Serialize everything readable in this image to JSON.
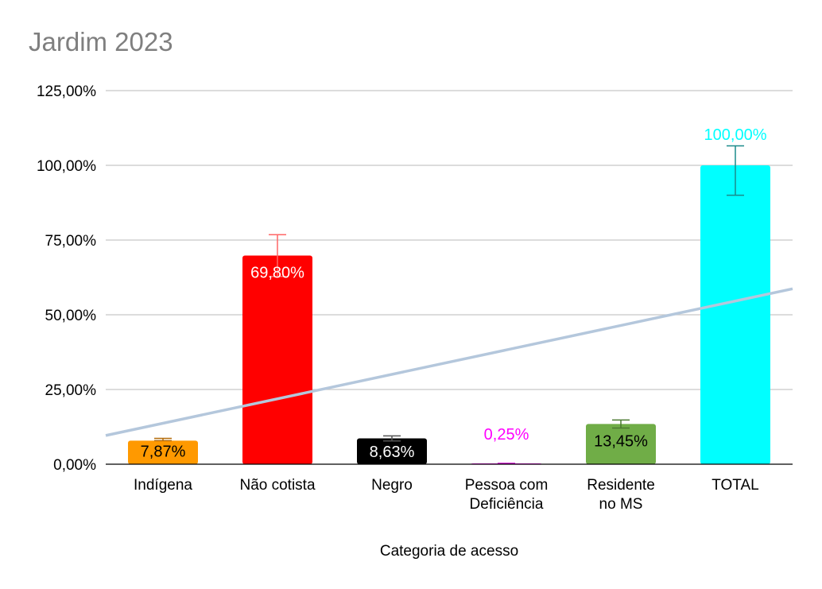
{
  "chart_data": {
    "type": "bar",
    "title": "Jardim 2023",
    "xlabel": "Categoria de acesso",
    "ylabel": "",
    "ylim": [
      0,
      125
    ],
    "yticks": [
      0,
      25,
      50,
      75,
      100,
      125
    ],
    "ytick_labels": [
      "0,00%",
      "25,00%",
      "50,00%",
      "75,00%",
      "100,00%",
      "125,00%"
    ],
    "grid": true,
    "categories": [
      [
        "Indígena"
      ],
      [
        "Não cotista"
      ],
      [
        "Negro"
      ],
      [
        "Pessoa com",
        "Deficiência"
      ],
      [
        "Residente",
        "no MS"
      ],
      [
        "TOTAL"
      ]
    ],
    "values": [
      7.87,
      69.8,
      8.63,
      0.25,
      13.45,
      100.0
    ],
    "data_labels": [
      "7,87%",
      "69,80%",
      "8,63%",
      "0,25%",
      "13,45%",
      "100,00%"
    ],
    "bar_colors": [
      "#ff9900",
      "#ff0000",
      "#000000",
      "#ff00ff",
      "#70ad47",
      "#00ffff"
    ],
    "label_colors": [
      "#000000",
      "#ffffff",
      "#ffffff",
      "#ff00ff",
      "#000000",
      "#00ffff"
    ],
    "label_inside": [
      true,
      true,
      true,
      false,
      true,
      false
    ],
    "error_bars": [
      {
        "low": 7.87,
        "high": 8.66
      },
      {
        "low": 62.8,
        "high": 76.8
      },
      {
        "low": 7.77,
        "high": 9.49
      },
      {
        "low": 0.22,
        "high": 0.28
      },
      {
        "low": 12.1,
        "high": 14.8
      },
      {
        "low": 90.0,
        "high": 106.5
      }
    ],
    "error_bar_colors": [
      "#b46b0a",
      "#ff6666",
      "#555555",
      "#cc00cc",
      "#4b7a30",
      "#1b8a8a"
    ],
    "trendline": {
      "type": "linear",
      "color": "#b4c7dc",
      "y_at_first": 13.7,
      "y_at_last": 54.6
    }
  }
}
